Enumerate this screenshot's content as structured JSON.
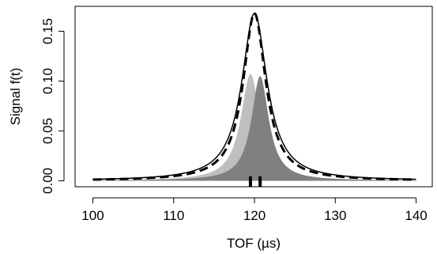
{
  "chart_data": {
    "type": "area",
    "xlabel": "TOF (µs)",
    "ylabel": "Signal f(t)",
    "xlim": [
      97.8,
      142.0
    ],
    "ylim": [
      -0.006,
      0.175
    ],
    "x_ticks": [
      "100",
      "110",
      "120",
      "130",
      "140"
    ],
    "y_ticks": [
      "0.00",
      "0.05",
      "0.10",
      "0.15"
    ],
    "legend": "none",
    "grid": false,
    "series": [
      {
        "style": "filled area",
        "color": "#bfbfbf",
        "shape": "lorentzian",
        "center": 119.5,
        "peak": 0.107,
        "half_width": 1.45,
        "x_range": [
          100,
          140
        ]
      },
      {
        "style": "filled area",
        "color": "#808080",
        "shape": "lorentzian",
        "center": 120.7,
        "peak": 0.105,
        "half_width": 1.3,
        "x_range": [
          100,
          140
        ]
      },
      {
        "style": "solid line",
        "color": "#000000",
        "shape": "lorentzian",
        "center": 120.0,
        "peak": 0.168,
        "half_width": 1.9,
        "x_range": [
          100,
          140
        ]
      },
      {
        "style": "dashed line",
        "color": "#000000",
        "shape": "lorentzian",
        "center": 120.0,
        "peak": 0.168,
        "half_width": 1.7,
        "x_range": [
          100,
          140
        ]
      }
    ],
    "rug_marks": [
      {
        "x": 119.5,
        "color": "#000000"
      },
      {
        "x": 120.7,
        "color": "#000000"
      }
    ]
  }
}
